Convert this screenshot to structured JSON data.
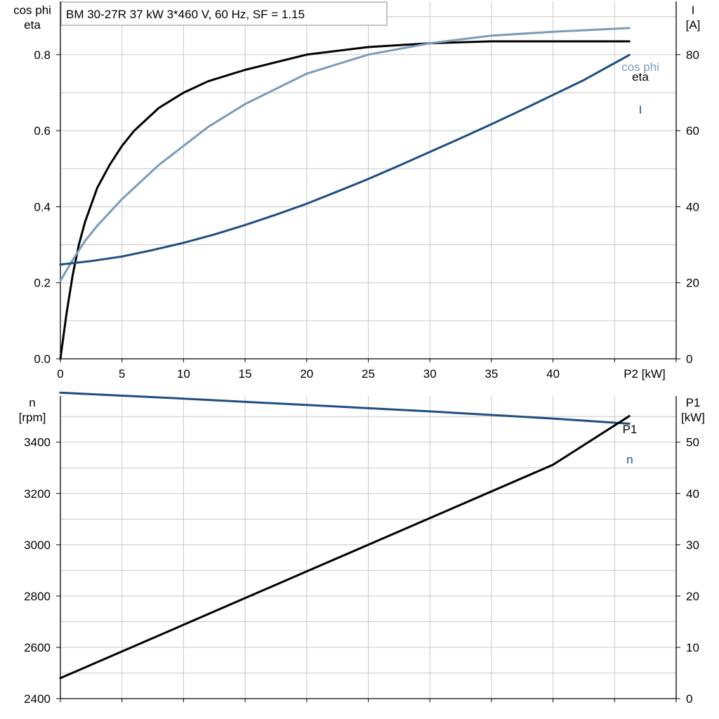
{
  "chart_data": [
    {
      "type": "line",
      "title": "BM 30-27R   37 kW   3*460 V, 60 Hz, SF = 1.15",
      "xlabel": "P2 [kW]",
      "ylabel_left": [
        "cos phi",
        "eta"
      ],
      "ylabel_right": [
        "I",
        "[A]"
      ],
      "xlim": [
        0,
        50
      ],
      "ylim_left": [
        0,
        0.94
      ],
      "ylim_right": [
        0,
        94
      ],
      "x_ticks": [
        0,
        5,
        10,
        15,
        20,
        25,
        30,
        35,
        40
      ],
      "y_ticks_left": [
        "0.0",
        "0.2",
        "0.4",
        "0.6",
        "0.8"
      ],
      "y_ticks_right": [
        "0",
        "20",
        "40",
        "60",
        "80"
      ],
      "grid": true,
      "series": [
        {
          "name": "eta",
          "axis": "left",
          "color": "#000000",
          "x": [
            0,
            0.5,
            1,
            1.5,
            2,
            3,
            4,
            5,
            6,
            8,
            10,
            12,
            15,
            20,
            25,
            30,
            35,
            40,
            46.2
          ],
          "y": [
            0.0,
            0.12,
            0.22,
            0.3,
            0.36,
            0.45,
            0.51,
            0.56,
            0.6,
            0.66,
            0.7,
            0.73,
            0.76,
            0.8,
            0.82,
            0.83,
            0.835,
            0.835,
            0.835
          ]
        },
        {
          "name": "cos phi",
          "axis": "left",
          "color": "#7a9cba",
          "x": [
            0,
            1,
            2,
            3,
            5,
            8,
            10,
            12,
            15,
            20,
            25,
            30,
            35,
            40,
            46.2
          ],
          "y": [
            0.205,
            0.26,
            0.31,
            0.35,
            0.42,
            0.51,
            0.56,
            0.61,
            0.67,
            0.75,
            0.8,
            0.83,
            0.85,
            0.86,
            0.87
          ]
        },
        {
          "name": "I",
          "axis": "right",
          "color": "#1e4f80",
          "x": [
            0,
            2.5,
            5,
            7.5,
            10,
            12.5,
            15,
            17.5,
            20,
            22.5,
            25,
            27.5,
            30,
            32.5,
            35,
            37.5,
            40,
            42.5,
            46.2
          ],
          "y": [
            24.8,
            25.7,
            26.9,
            28.6,
            30.5,
            32.7,
            35.2,
            37.9,
            40.8,
            44.0,
            47.3,
            50.8,
            54.4,
            58.0,
            61.7,
            65.5,
            69.4,
            73.3,
            79.9
          ]
        }
      ]
    },
    {
      "type": "line",
      "xlabel": "",
      "ylabel_left": [
        "n",
        "[rpm]"
      ],
      "ylabel_right": [
        "P1",
        "[kW]"
      ],
      "xlim": [
        0,
        50
      ],
      "ylim_left": [
        2400,
        3580
      ],
      "ylim_right": [
        0,
        59
      ],
      "y_ticks_left": [
        "2400",
        "2600",
        "2800",
        "3000",
        "3200",
        "3400"
      ],
      "y_ticks_right": [
        "0",
        "10",
        "20",
        "30",
        "40",
        "50"
      ],
      "grid": true,
      "series": [
        {
          "name": "n",
          "axis": "left",
          "color": "#1e4f80",
          "x": [
            0,
            10,
            20,
            30,
            40,
            46.2
          ],
          "y": [
            3593,
            3570,
            3545,
            3520,
            3492,
            3472
          ]
        },
        {
          "name": "P1",
          "axis": "right",
          "color": "#000000",
          "x": [
            0,
            10,
            20,
            30,
            40,
            46.2
          ],
          "y": [
            4.0,
            14.4,
            24.8,
            35.2,
            45.6,
            55.1
          ]
        }
      ]
    }
  ]
}
